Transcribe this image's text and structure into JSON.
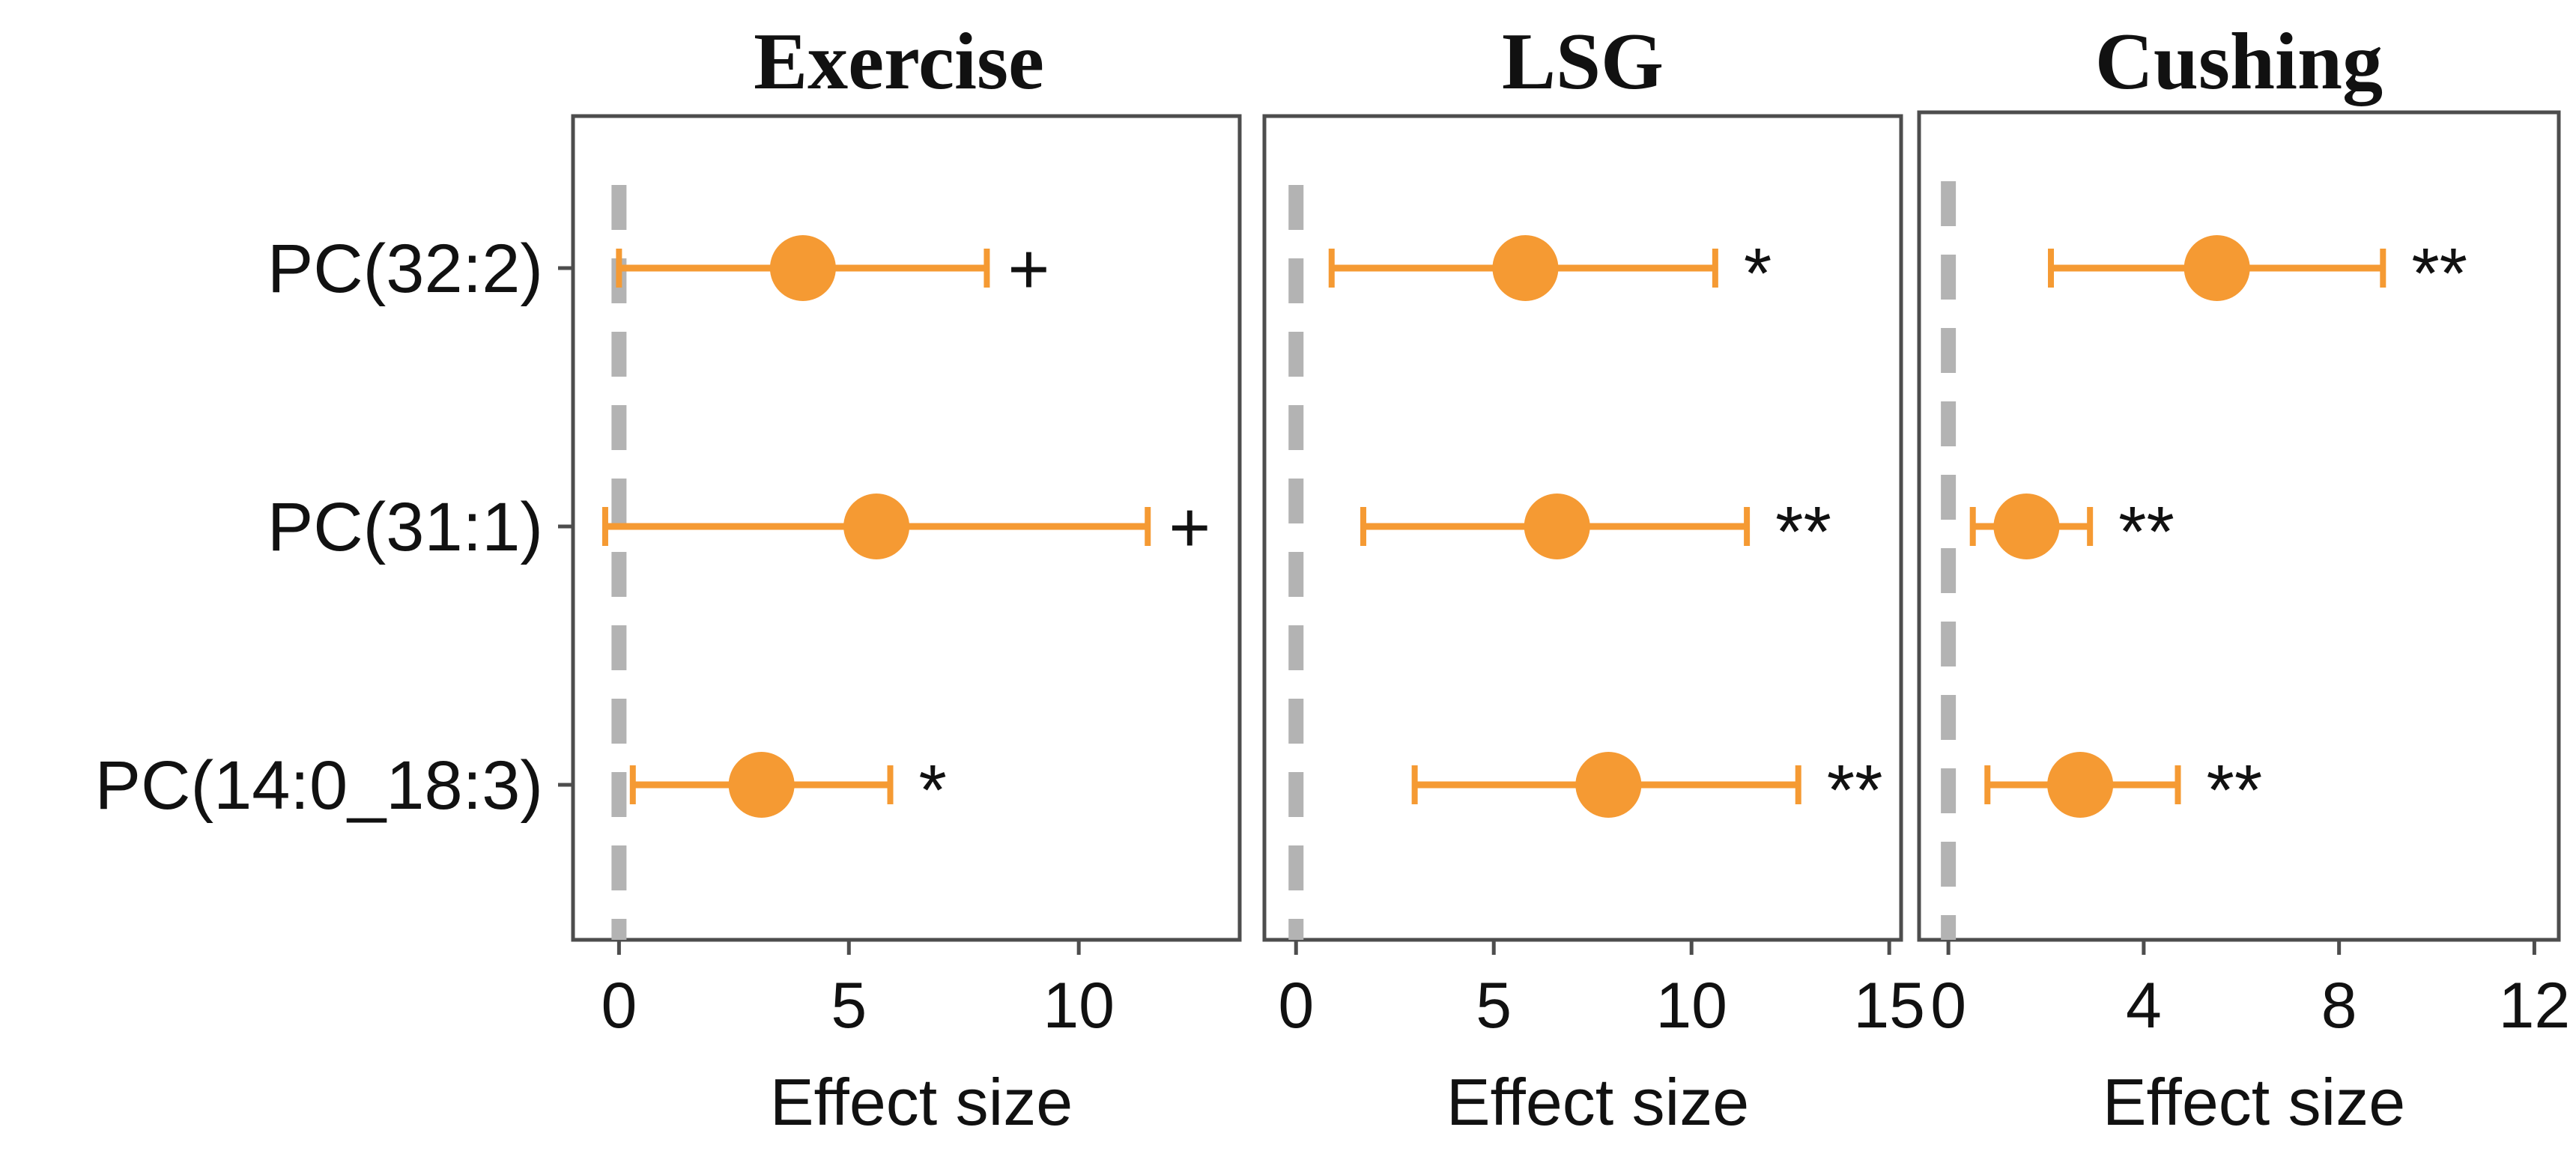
{
  "chart_data": {
    "type": "forest",
    "xlabel": "Effect size",
    "categories": [
      "PC(32:2)",
      "PC(31:1)",
      "PC(14:0_18:3)"
    ],
    "reference_line": 0,
    "colors": {
      "point": "#f59a33",
      "reference": "#b3b3b3",
      "frame": "#4d4d4d"
    },
    "panels": [
      {
        "title": "Exercise",
        "xlim": [
          -1,
          13.5
        ],
        "xticks": [
          0,
          5,
          10
        ],
        "points": [
          {
            "category": "PC(32:2)",
            "estimate": 4.0,
            "lower": 0.0,
            "upper": 8.0,
            "sig": "+"
          },
          {
            "category": "PC(31:1)",
            "estimate": 5.6,
            "lower": -0.3,
            "upper": 11.5,
            "sig": "+"
          },
          {
            "category": "PC(14:0_18:3)",
            "estimate": 3.1,
            "lower": 0.3,
            "upper": 5.9,
            "sig": "*"
          }
        ]
      },
      {
        "title": "LSG",
        "xlim": [
          -0.8,
          15.3
        ],
        "xticks": [
          0,
          5,
          10,
          15
        ],
        "points": [
          {
            "category": "PC(32:2)",
            "estimate": 5.8,
            "lower": 0.9,
            "upper": 10.6,
            "sig": "*"
          },
          {
            "category": "PC(31:1)",
            "estimate": 6.6,
            "lower": 1.7,
            "upper": 11.4,
            "sig": "**"
          },
          {
            "category": "PC(14:0_18:3)",
            "estimate": 7.9,
            "lower": 3.0,
            "upper": 12.7,
            "sig": "**"
          }
        ]
      },
      {
        "title": "Cushing",
        "xlim": [
          -0.6,
          12.5
        ],
        "xticks": [
          0,
          4,
          8,
          12
        ],
        "points": [
          {
            "category": "PC(32:2)",
            "estimate": 5.5,
            "lower": 2.1,
            "upper": 8.9,
            "sig": "**"
          },
          {
            "category": "PC(31:1)",
            "estimate": 1.6,
            "lower": 0.5,
            "upper": 2.9,
            "sig": "**"
          },
          {
            "category": "PC(14:0_18:3)",
            "estimate": 2.7,
            "lower": 0.8,
            "upper": 4.7,
            "sig": "**"
          }
        ]
      }
    ]
  }
}
